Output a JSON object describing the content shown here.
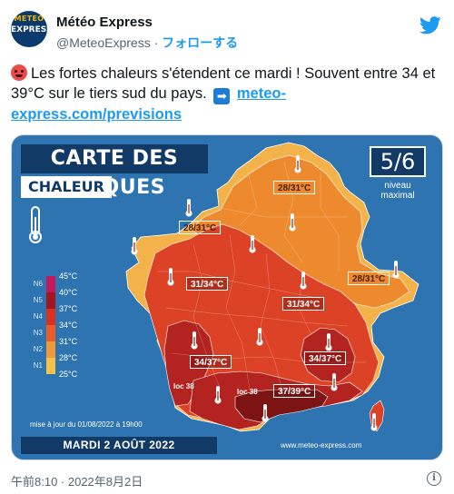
{
  "account": {
    "name": "Météo Express",
    "handle": "@MeteoExpress",
    "separator": " · ",
    "follow_label": "フォローする",
    "avatar_top": "METEO",
    "avatar_main": "EXPRESS"
  },
  "tweet": {
    "text_main": "Les fortes chaleurs s'étendent ce mardi ! Souvent entre 34 et 39°C sur le tiers sud du pays.",
    "arrow_glyph": "➡",
    "link_text": "meteo-express.com/previsions"
  },
  "map": {
    "title": "CARTE DES RISQUES",
    "subtitle": "CHALEUR",
    "level": "5/6",
    "level_label_1": "niveau",
    "level_label_2": "maximal",
    "legend": [
      {
        "level": "N6",
        "temp": "45°C",
        "color": "#c3175c"
      },
      {
        "level": "N5",
        "temp": "40°C",
        "color": "#a3151c"
      },
      {
        "level": "N4",
        "temp": "37°C",
        "color": "#d8311f"
      },
      {
        "level": "N3",
        "temp": "34°C",
        "color": "#ea5b26"
      },
      {
        "level": "N2",
        "temp": "31°C",
        "color": "#f29a3a"
      },
      {
        "level": "N1",
        "temp": "28°C",
        "color": "#f6c34a"
      },
      {
        "level": "",
        "temp": "25°C",
        "color": "#f6c34a"
      }
    ],
    "temp_labels": [
      "28/31°C",
      "28/31°C",
      "28/31°C",
      "31/34°C",
      "31/34°C",
      "34/37°C",
      "34/37°C",
      "37/39°C"
    ],
    "loc_labels": [
      "loc 38",
      "loc 38"
    ],
    "update_text": "mise à jour du 01/08/2022 à 19h00",
    "date": "MARDI 2 AOÛT 2022",
    "site": "www.meteo-express.com",
    "colors": {
      "sea": "#2e74b0",
      "zone_yellow": "#f4b24a",
      "zone_orange": "#ee8a2e",
      "zone_red": "#dc4326",
      "zone_darkred": "#b3231f",
      "zone_maroon": "#7d1414"
    }
  },
  "footer": {
    "timestamp": "午前8:10 · 2022年8月2日"
  }
}
